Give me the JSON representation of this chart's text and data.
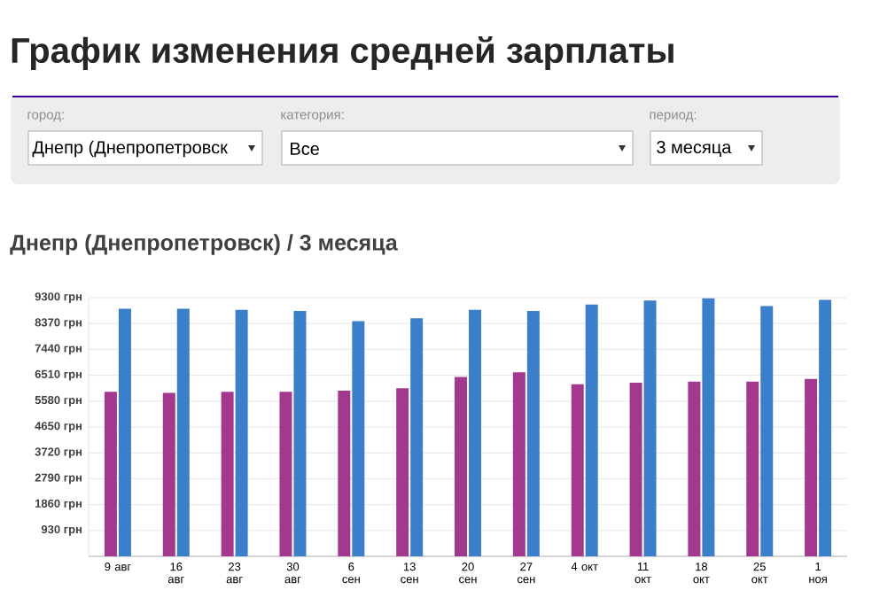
{
  "chart_data": {
    "type": "bar",
    "title": "График изменения средней зарплаты",
    "subtitle": "Днепр (Днепропетровск) / 3 месяца",
    "annotations": [
      "город:",
      "Днепр (Днепропетровск",
      "категория:",
      "Все",
      "период:",
      "3 месяца"
    ],
    "categories": [
      "9 авг",
      "16 авг",
      "23 авг",
      "30 авг",
      "6 сен",
      "13 сен",
      "20 сен",
      "27 сен",
      "4 окт",
      "11 окт",
      "18 окт",
      "25 окт",
      "1 ноя"
    ],
    "series": [
      {
        "color": "#a3388f",
        "values": [
          5920,
          5880,
          5920,
          5920,
          5960,
          6040,
          6450,
          6620,
          6190,
          6240,
          6280,
          6280,
          6380
        ]
      },
      {
        "color": "#3b7fcb",
        "values": [
          8900,
          8900,
          8860,
          8820,
          8460,
          8560,
          8860,
          8820,
          9050,
          9200,
          9280,
          9000,
          9220
        ]
      }
    ],
    "ylim": [
      0,
      9300
    ],
    "yticks": [
      {
        "value": 930,
        "label": "930 грн"
      },
      {
        "value": 1860,
        "label": "1860 грн"
      },
      {
        "value": 2790,
        "label": "2790 грн"
      },
      {
        "value": 3720,
        "label": "3720 грн"
      },
      {
        "value": 4650,
        "label": "4650 грн"
      },
      {
        "value": 5580,
        "label": "5580 грн"
      },
      {
        "value": 6510,
        "label": "6510 грн"
      },
      {
        "value": 7440,
        "label": "7440 грн"
      },
      {
        "value": 8370,
        "label": "8370 грн"
      },
      {
        "value": 9300,
        "label": "9300 грн"
      }
    ],
    "grid": "y"
  }
}
